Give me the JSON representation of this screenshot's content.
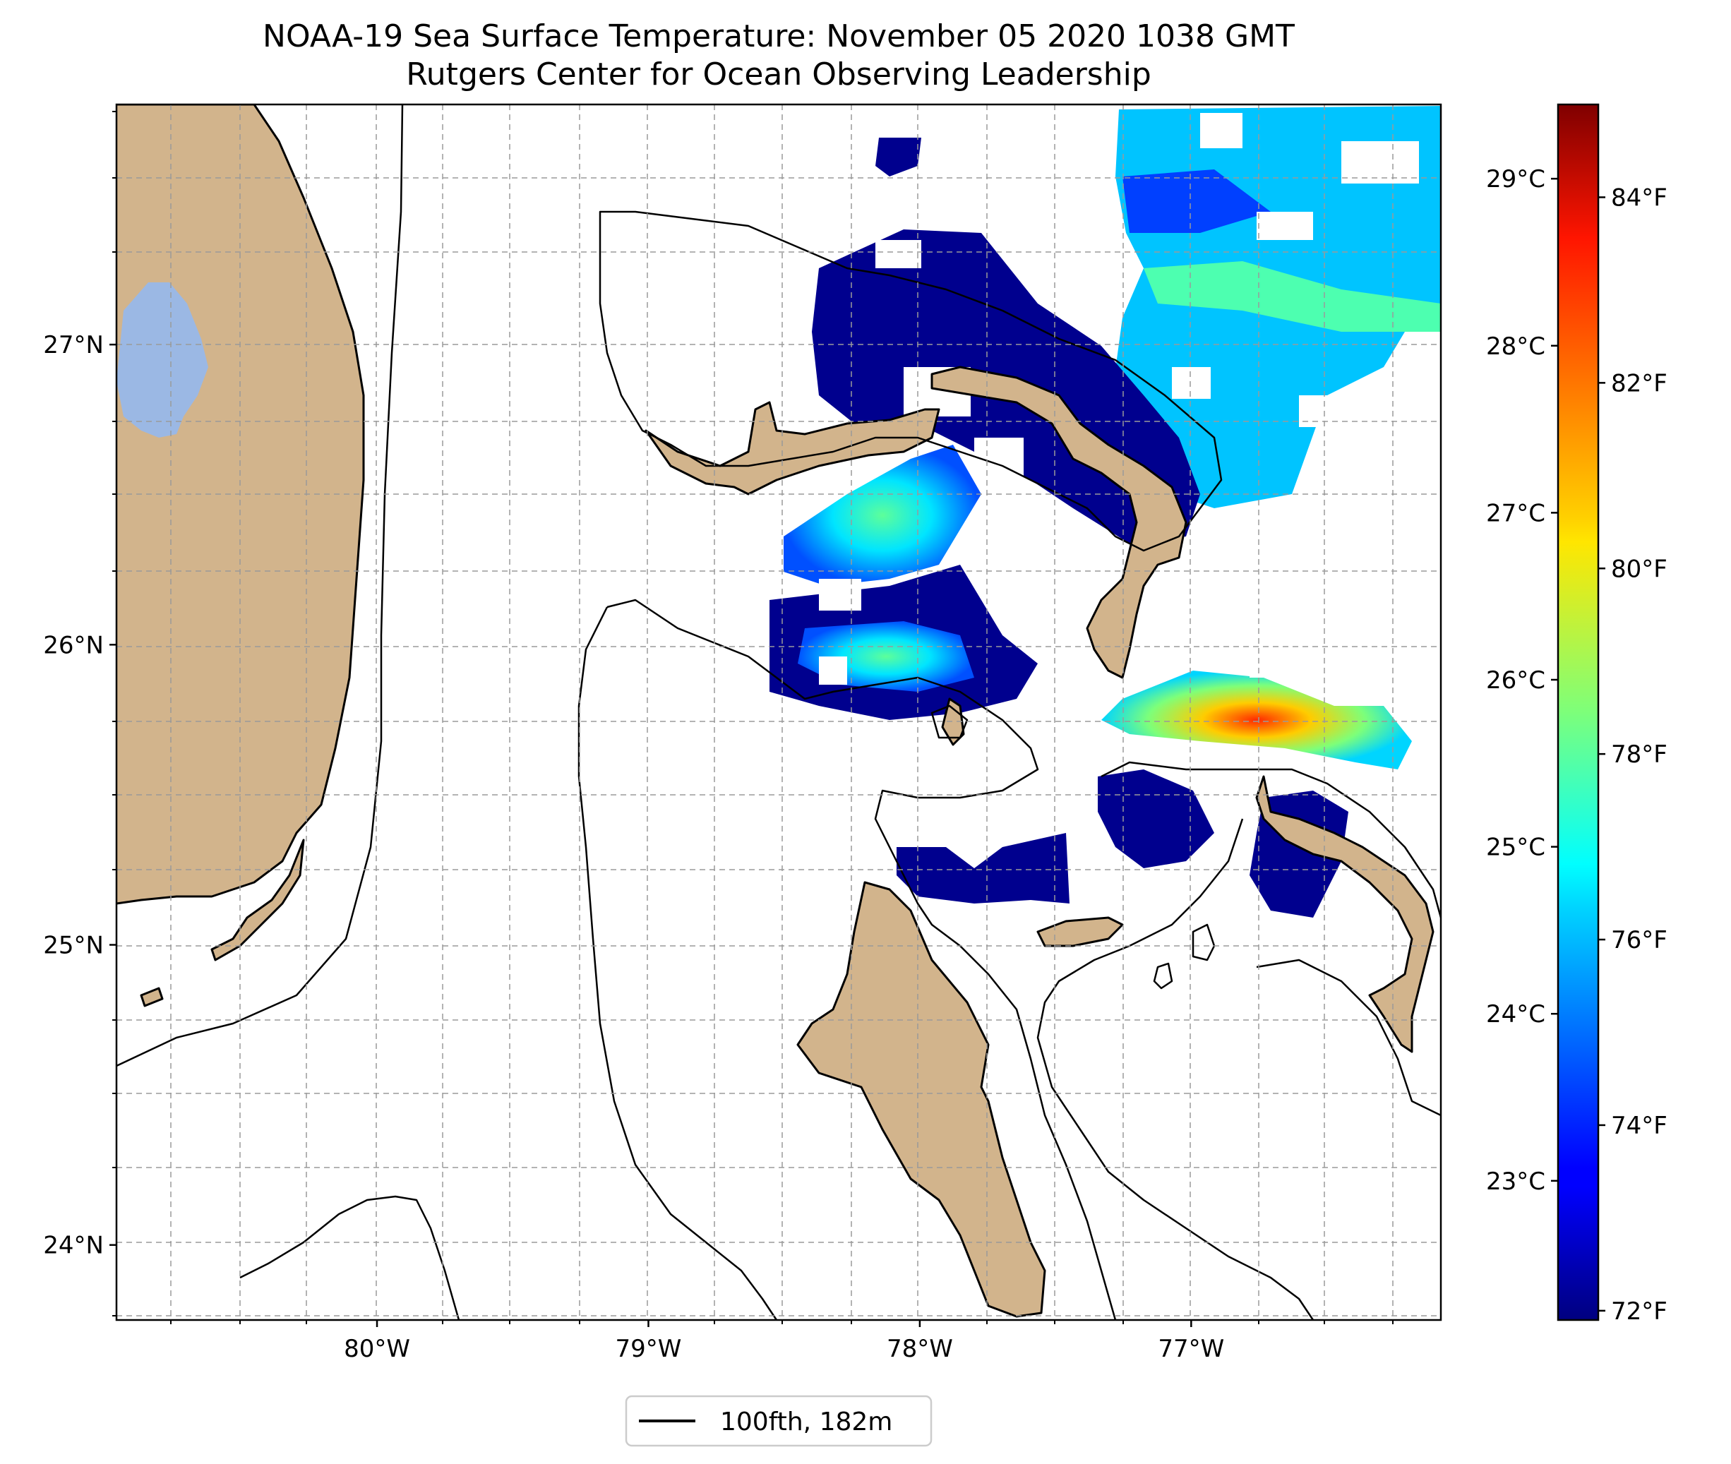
{
  "title": {
    "line1": "NOAA-19 Sea Surface Temperature: November 05 2020 1038 GMT",
    "line2": "Rutgers Center for Ocean Observing Leadership"
  },
  "map": {
    "lon_range": [
      -80.96,
      -76.08
    ],
    "lat_range": [
      23.75,
      27.8
    ],
    "lon_ticks": [
      {
        "value": -80,
        "label": "80°W"
      },
      {
        "value": -79,
        "label": "79°W"
      },
      {
        "value": -78,
        "label": "78°W"
      },
      {
        "value": -77,
        "label": "77°W"
      }
    ],
    "lat_ticks": [
      {
        "value": 24,
        "label": "24°N"
      },
      {
        "value": 25,
        "label": "25°N"
      },
      {
        "value": 26,
        "label": "26°N"
      },
      {
        "value": 27,
        "label": "27°N"
      }
    ],
    "grid": true,
    "land_color": "#d2b48c",
    "lake_color": "#9bb8e4",
    "contour_color": "#000000"
  },
  "colorbar": {
    "colormap": "jet",
    "range_f": [
      71.9,
      85.0
    ],
    "celsius_ticks": [
      {
        "value": 23,
        "label": "23°C"
      },
      {
        "value": 24,
        "label": "24°C"
      },
      {
        "value": 25,
        "label": "25°C"
      },
      {
        "value": 26,
        "label": "26°C"
      },
      {
        "value": 27,
        "label": "27°C"
      },
      {
        "value": 28,
        "label": "28°C"
      },
      {
        "value": 29,
        "label": "29°C"
      }
    ],
    "fahrenheit_ticks": [
      {
        "value": 72,
        "label": "72°F"
      },
      {
        "value": 74,
        "label": "74°F"
      },
      {
        "value": 76,
        "label": "76°F"
      },
      {
        "value": 78,
        "label": "78°F"
      },
      {
        "value": 80,
        "label": "80°F"
      },
      {
        "value": 82,
        "label": "82°F"
      },
      {
        "value": 84,
        "label": "84°F"
      }
    ]
  },
  "legend": {
    "entries": [
      {
        "label": "100fth, 182m",
        "color": "#000000"
      }
    ]
  }
}
